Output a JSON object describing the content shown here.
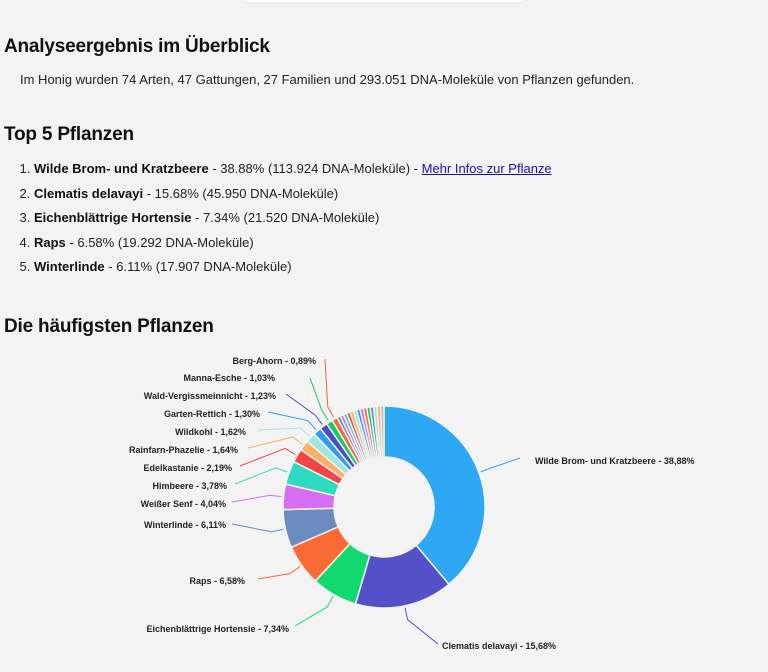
{
  "overview": {
    "title": "Analyseergebnis im Überblick",
    "summary": "Im Honig wurden 74 Arten, 47 Gattungen, 27 Familien und 293.051 DNA-Moleküle von Pflanzen gefunden."
  },
  "top5": {
    "title": "Top 5 Pflanzen",
    "items": [
      {
        "name": "Wilde Brom- und Kratzbeere",
        "detail": " - 38.88% (113.924 DNA-Moleküle)",
        "link_sep": " - ",
        "link": "Mehr Infos zur Pflanze"
      },
      {
        "name": "Clematis delavayi",
        "detail": " - 15.68% (45.950 DNA-Moleküle)"
      },
      {
        "name": "Eichenblättrige Hortensie",
        "detail": " - 7.34% (21.520 DNA-Moleküle)"
      },
      {
        "name": "Raps",
        "detail": " - 6.58% (19.292 DNA-Moleküle)"
      },
      {
        "name": "Winterlinde",
        "detail": " - 6.11% (17.907 DNA-Moleküle)"
      }
    ]
  },
  "chart_section": {
    "title": "Die häufigsten Pflanzen"
  },
  "chart_data": {
    "type": "pie",
    "variant": "donut",
    "title": "Die häufigsten Pflanzen",
    "unit": "%",
    "categories": [
      "Wilde Brom- und Kratzbeere",
      "Clematis delavayi",
      "Eichenblättrige Hortensie",
      "Raps",
      "Winterlinde",
      "Weißer Senf",
      "Himbeere",
      "Edelkastanie",
      "Rainfarn-Phazelie",
      "Wildkohl",
      "Garten-Rettich",
      "Wald-Vergissmeinnicht",
      "Manna-Esche",
      "Berg-Ahorn"
    ],
    "values": [
      38.88,
      15.68,
      7.34,
      6.58,
      6.11,
      4.04,
      3.78,
      2.19,
      1.64,
      1.62,
      1.3,
      1.23,
      1.03,
      0.89
    ],
    "labels": [
      "Wilde Brom- und Kratzbeere - 38,88%",
      "Clematis delavayi - 15,68%",
      "Eichenblättrige Hortensie - 7,34%",
      "Raps - 6,58%",
      "Winterlinde - 6,11%",
      "Weißer Senf - 4,04%",
      "Himbeere - 3,78%",
      "Edelkastanie - 2,19%",
      "Rainfarn-Phazelie - 1,64%",
      "Wildkohl - 1,62%",
      "Garten-Rettich - 1,30%",
      "Wald-Vergissmeinnicht - 1,23%",
      "Manna-Esche - 1,03%",
      "Berg-Ahorn - 0,89%"
    ],
    "colors": [
      "#2ea8f5",
      "#5450c8",
      "#12d870",
      "#fa6a34",
      "#6a8ac0",
      "#d66ef2",
      "#2ddcc0",
      "#f44444",
      "#fcae64",
      "#a0e6e0",
      "#2e9cf0",
      "#4c4cc0",
      "#12cc6c",
      "#f26a34"
    ],
    "other_small_slices_colors": [
      "#6a8ac0",
      "#d66ef2",
      "#2ddcc0",
      "#f44444",
      "#fcae64",
      "#a0e6e0",
      "#2e9cf0",
      "#d66ef2",
      "#f26a34",
      "#12cc6c",
      "#6a8ac0",
      "#a0e6e0",
      "#fcae64",
      "#bbbbbb"
    ],
    "legend": "none (callout labels)"
  }
}
